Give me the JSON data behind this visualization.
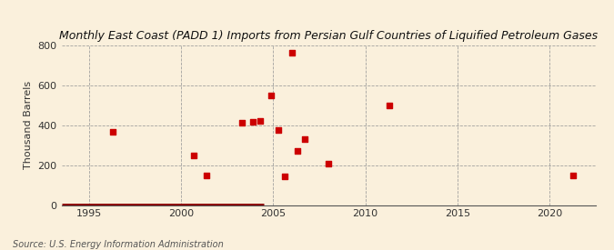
{
  "title": "Monthly East Coast (PADD 1) Imports from Persian Gulf Countries of Liquified Petroleum Gases",
  "ylabel": "Thousand Barrels",
  "source": "Source: U.S. Energy Information Administration",
  "background_color": "#faf0dc",
  "scatter_color": "#cc0000",
  "line_color": "#8b0000",
  "xlim": [
    1993.5,
    2022.5
  ],
  "ylim": [
    0,
    800
  ],
  "yticks": [
    0,
    200,
    400,
    600,
    800
  ],
  "xticks": [
    1995,
    2000,
    2005,
    2010,
    2015,
    2020
  ],
  "scatter_x": [
    1996.3,
    2000.7,
    2001.4,
    2003.3,
    2003.9,
    2004.3,
    2004.9,
    2005.3,
    2005.6,
    2006.0,
    2006.3,
    2006.7,
    2008.0,
    2011.3,
    2021.3
  ],
  "scatter_y": [
    365,
    250,
    150,
    410,
    415,
    420,
    550,
    375,
    145,
    760,
    270,
    330,
    205,
    500,
    150
  ],
  "line_x_start": 1993.5,
  "line_x_end": 2004.5,
  "line_y": 0,
  "title_fontsize": 9,
  "ylabel_fontsize": 8,
  "tick_fontsize": 8,
  "source_fontsize": 7
}
